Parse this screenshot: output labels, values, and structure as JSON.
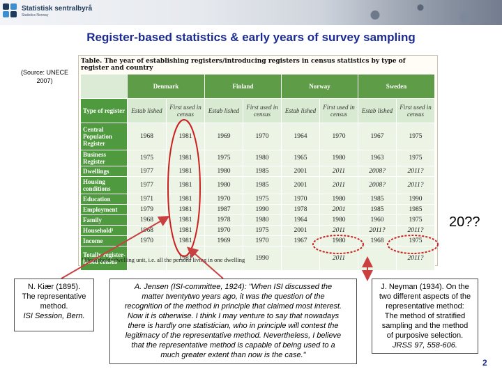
{
  "header": {
    "logo_name": "Statistisk sentralbyrå",
    "logo_sub": "Statistics Norway"
  },
  "title": "Register-based statistics & early years of survey sampling",
  "source": "(Source: UNECE 2007)",
  "table": {
    "caption": "Table. The year of establishing registers/introducing registers in census statistics by type of register and country",
    "type_header": "Type of register",
    "countries": [
      "Denmark",
      "Finland",
      "Norway",
      "Sweden"
    ],
    "subheaders": [
      "Estab lished",
      "First used in census"
    ],
    "rows": [
      {
        "type": "Central Population Register",
        "values": [
          "1968",
          "1981",
          "1969",
          "1970",
          "1964",
          "1970",
          "1967",
          "1975"
        ]
      },
      {
        "type": "Business Register",
        "values": [
          "1975",
          "1981",
          "1975",
          "1980",
          "1965",
          "1980",
          "1963",
          "1975"
        ]
      },
      {
        "type": "Dwellings",
        "values": [
          "1977",
          "1981",
          "1980",
          "1985",
          "2001",
          "2011",
          "2008?",
          "2011?"
        ]
      },
      {
        "type": "Housing conditions",
        "values": [
          "1977",
          "1981",
          "1980",
          "1985",
          "2001",
          "2011",
          "2008?",
          "2011?"
        ]
      },
      {
        "type": "Education",
        "values": [
          "1971",
          "1981",
          "1970",
          "1975",
          "1970",
          "1980",
          "1985",
          "1990"
        ]
      },
      {
        "type": "Employment",
        "values": [
          "1979",
          "1981",
          "1987",
          "1990",
          "1978",
          "2001",
          "1985",
          "1985"
        ]
      },
      {
        "type": "Family",
        "values": [
          "1968",
          "1981",
          "1978",
          "1980",
          "1964",
          "1980",
          "1960",
          "1975"
        ]
      },
      {
        "type": "Household¹",
        "values": [
          "1968",
          "1981",
          "1970",
          "1975",
          "2001",
          "2011",
          "2011?",
          "2011?"
        ]
      },
      {
        "type": "Income",
        "values": [
          "1970",
          "1981",
          "1969",
          "1970",
          "1967",
          "1980",
          "1968",
          "1975"
        ]
      },
      {
        "type": "Totally register-based census",
        "values": [
          "",
          "1981",
          "",
          "1990",
          "",
          "2011",
          "",
          "2011?"
        ]
      }
    ],
    "footnote": "¹ Household=dwelling unit, i.e. all the persons living in one dwelling"
  },
  "annotation": "20??",
  "boxes": {
    "kiaer": [
      "N. Kiær (1895).",
      "The representative",
      "method.",
      "ISI Session, Bern."
    ],
    "jensen": [
      "A. Jensen (ISI-committee, 1924): \"When ISI discussed the",
      "matter twentytwo years ago, it was the question of the",
      "recognition of the method in principle that claimed most interest.",
      "Now it is otherwise. I think I may venture to say that nowadays",
      "there is hardly one statistician, who in principle will contest the",
      "legitimacy of the representative method. Nevertheless, I believe",
      "that the representative method is capable of being used to a",
      "much greater extent than now is the case.\""
    ],
    "neyman": [
      "J. Neyman (1934). On the",
      "two different aspects of the",
      "representative method:",
      "The method of stratified",
      "sampling and the method",
      "of purposive selection.",
      "JRSS 97, 558-606."
    ]
  },
  "page_number": "2",
  "colors": {
    "title": "#1b2b8f",
    "table_header": "#5e9c47",
    "table_cell": "#ebf4e5",
    "ellipse": "#cc2020",
    "arrow": "#c94040"
  }
}
